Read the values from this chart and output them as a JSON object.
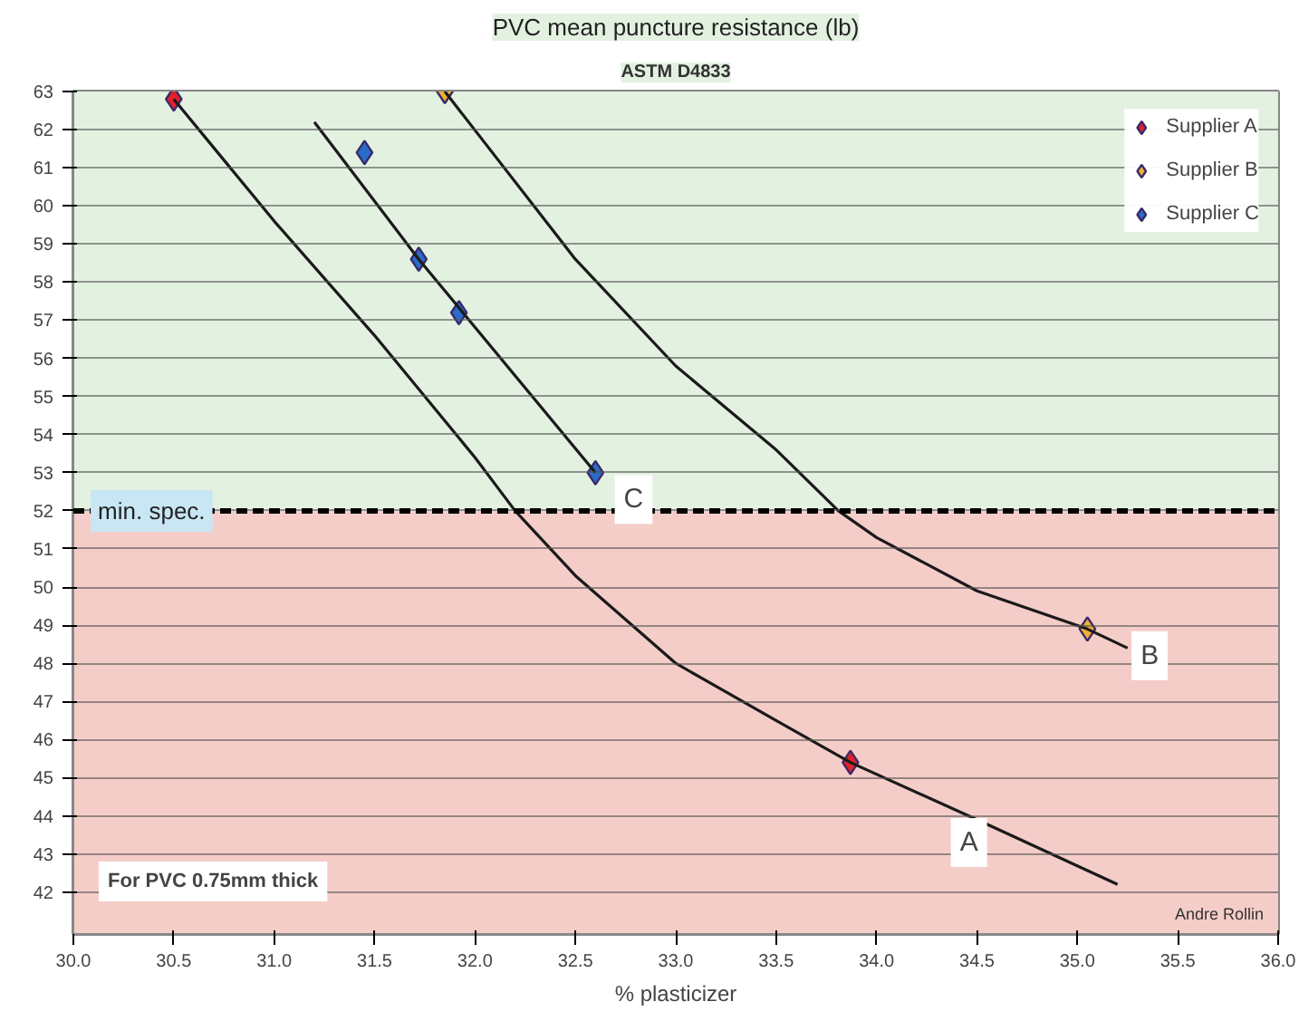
{
  "chart_data": {
    "type": "scatter",
    "title": "PVC mean puncture resistance (lb)",
    "subtitle": "ASTM D4833",
    "xlabel": "% plasticizer",
    "xlim": [
      30.0,
      36.0
    ],
    "ylim": [
      40.9,
      63.0
    ],
    "xticks": [
      {
        "value": 30.0,
        "label": "30.0"
      },
      30.5,
      {
        "value": 31.0,
        "label": "31.0"
      },
      31.5,
      {
        "value": 32.0,
        "label": "32.0"
      },
      32.5,
      {
        "value": 33.0,
        "label": "33.0"
      },
      33.5,
      {
        "value": 34.0,
        "label": "34.0"
      },
      34.5,
      {
        "value": 35.0,
        "label": "35.0"
      },
      35.5,
      {
        "value": 36.0,
        "label": "36.0"
      }
    ],
    "yticks": [
      42,
      43,
      44,
      45,
      46,
      47,
      48,
      49,
      50,
      51,
      52,
      53,
      54,
      55,
      56,
      57,
      58,
      59,
      60,
      61,
      62,
      63
    ],
    "grid": "y",
    "legend": "top right",
    "marker": "diamond",
    "series": [
      {
        "name": "Supplier A",
        "color": "#e0202a",
        "x": [
          30.5,
          33.87
        ],
        "values": [
          62.8,
          45.4
        ]
      },
      {
        "name": "Supplier B",
        "color": "#f0b030",
        "x": [
          31.85,
          35.05
        ],
        "values": [
          63.0,
          48.9
        ]
      },
      {
        "name": "Supplier C",
        "color": "#2a6cc8",
        "x": [
          31.45,
          31.72,
          31.92,
          32.6
        ],
        "values": [
          61.4,
          58.6,
          57.2,
          53.0
        ]
      },
      {
        "type": "line",
        "marker": "none",
        "color": "#1a1a1a",
        "x": [
          30.5,
          31.0,
          31.5,
          32.0,
          32.2,
          32.5,
          33.0,
          33.5,
          33.87,
          34.5,
          35.2
        ],
        "values": [
          62.8,
          59.6,
          56.6,
          53.4,
          52.0,
          50.3,
          48.0,
          46.5,
          45.4,
          43.9,
          42.2
        ]
      },
      {
        "type": "line",
        "marker": "none",
        "color": "#1a1a1a",
        "x": [
          31.85,
          32.5,
          33.0,
          33.5,
          33.81,
          34.0,
          34.5,
          35.05,
          35.25
        ],
        "values": [
          63.0,
          58.6,
          55.8,
          53.6,
          52.0,
          51.3,
          49.9,
          48.9,
          48.4
        ]
      },
      {
        "type": "line",
        "marker": "none",
        "color": "#1a1a1a",
        "x": [
          31.2,
          31.72,
          32.6
        ],
        "values": [
          62.2,
          58.6,
          53.0
        ]
      }
    ],
    "bands": [
      {
        "axis": "y",
        "from": 52,
        "to": 63.0,
        "color": "#e3f1e1"
      },
      {
        "axis": "y",
        "from": 40.9,
        "to": 52,
        "color": "#f5cdc8"
      }
    ],
    "ref_lines": [
      {
        "axis": "y",
        "value": 52,
        "label": "min. spec.",
        "color": "#000000",
        "line_style": "dashed"
      }
    ],
    "annotations": [
      {
        "text": "A",
        "x": 34.46,
        "y": 43.3
      },
      {
        "text": "B",
        "x": 35.36,
        "y": 48.2
      },
      {
        "text": "C",
        "x": 32.79,
        "y": 52.3
      },
      "For PVC 0.75mm thick",
      "Andre Rollin"
    ]
  }
}
